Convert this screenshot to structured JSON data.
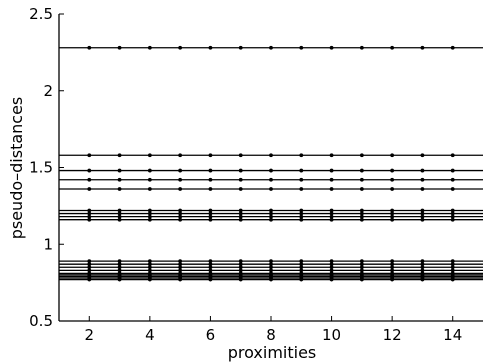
{
  "chart_data": {
    "type": "line",
    "title": "",
    "xlabel": "proximities",
    "ylabel": "pseudo–distances",
    "xlim": [
      1,
      15
    ],
    "ylim": [
      0.5,
      2.5
    ],
    "xticks": [
      2,
      4,
      6,
      8,
      10,
      12,
      14
    ],
    "yticks": [
      0.5,
      1,
      1.5,
      2,
      2.5
    ],
    "ytick_labels": [
      "0.5",
      "1",
      "1.5",
      "2",
      "2.5"
    ],
    "x": [
      2,
      3,
      4,
      5,
      6,
      7,
      8,
      9,
      10,
      11,
      12,
      13,
      14
    ],
    "grid": false,
    "legend": "none",
    "line_color": "#000000",
    "series_levels": [
      2.28,
      1.58,
      1.48,
      1.42,
      1.36,
      1.22,
      1.2,
      1.18,
      1.16,
      0.89,
      0.87,
      0.85,
      0.83,
      0.81,
      0.8,
      0.79,
      0.78,
      0.77
    ]
  }
}
